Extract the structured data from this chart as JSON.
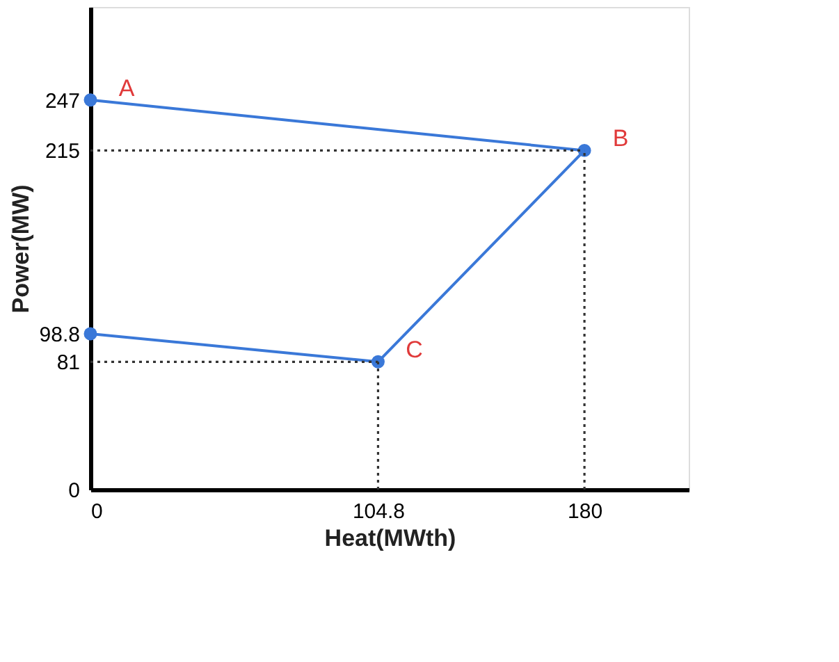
{
  "chart_data": {
    "type": "line",
    "xlabel": "Heat(MWth)",
    "ylabel": "Power(MW)",
    "xlim": [
      0,
      218
    ],
    "ylim": [
      0,
      306
    ],
    "xticks": [
      0,
      104.8,
      180
    ],
    "yticks": [
      0,
      81,
      98.8,
      215,
      247
    ],
    "grid": false,
    "series": [
      {
        "color": "#3a78d8",
        "marker": "circle",
        "line_style": "solid",
        "x": [
          0,
          180,
          104.8,
          0
        ],
        "values": [
          247,
          215,
          81,
          98.8
        ]
      },
      {
        "color": "#333333",
        "marker": "none",
        "line_style": "dotted",
        "x": [
          0,
          180
        ],
        "values": [
          215,
          215
        ]
      },
      {
        "color": "#333333",
        "marker": "none",
        "line_style": "dotted",
        "x": [
          180,
          180
        ],
        "values": [
          0,
          215
        ]
      },
      {
        "color": "#333333",
        "marker": "none",
        "line_style": "dotted",
        "x": [
          0,
          104.8
        ],
        "values": [
          81,
          81
        ]
      },
      {
        "color": "#333333",
        "marker": "none",
        "line_style": "dotted",
        "x": [
          104.8,
          104.8
        ],
        "values": [
          0,
          81
        ]
      }
    ],
    "annotations": [
      {
        "text": "A",
        "x": 0,
        "y": 247
      },
      {
        "text": "B",
        "x": 180,
        "y": 215
      },
      {
        "text": "C",
        "x": 104.8,
        "y": 81
      }
    ]
  }
}
